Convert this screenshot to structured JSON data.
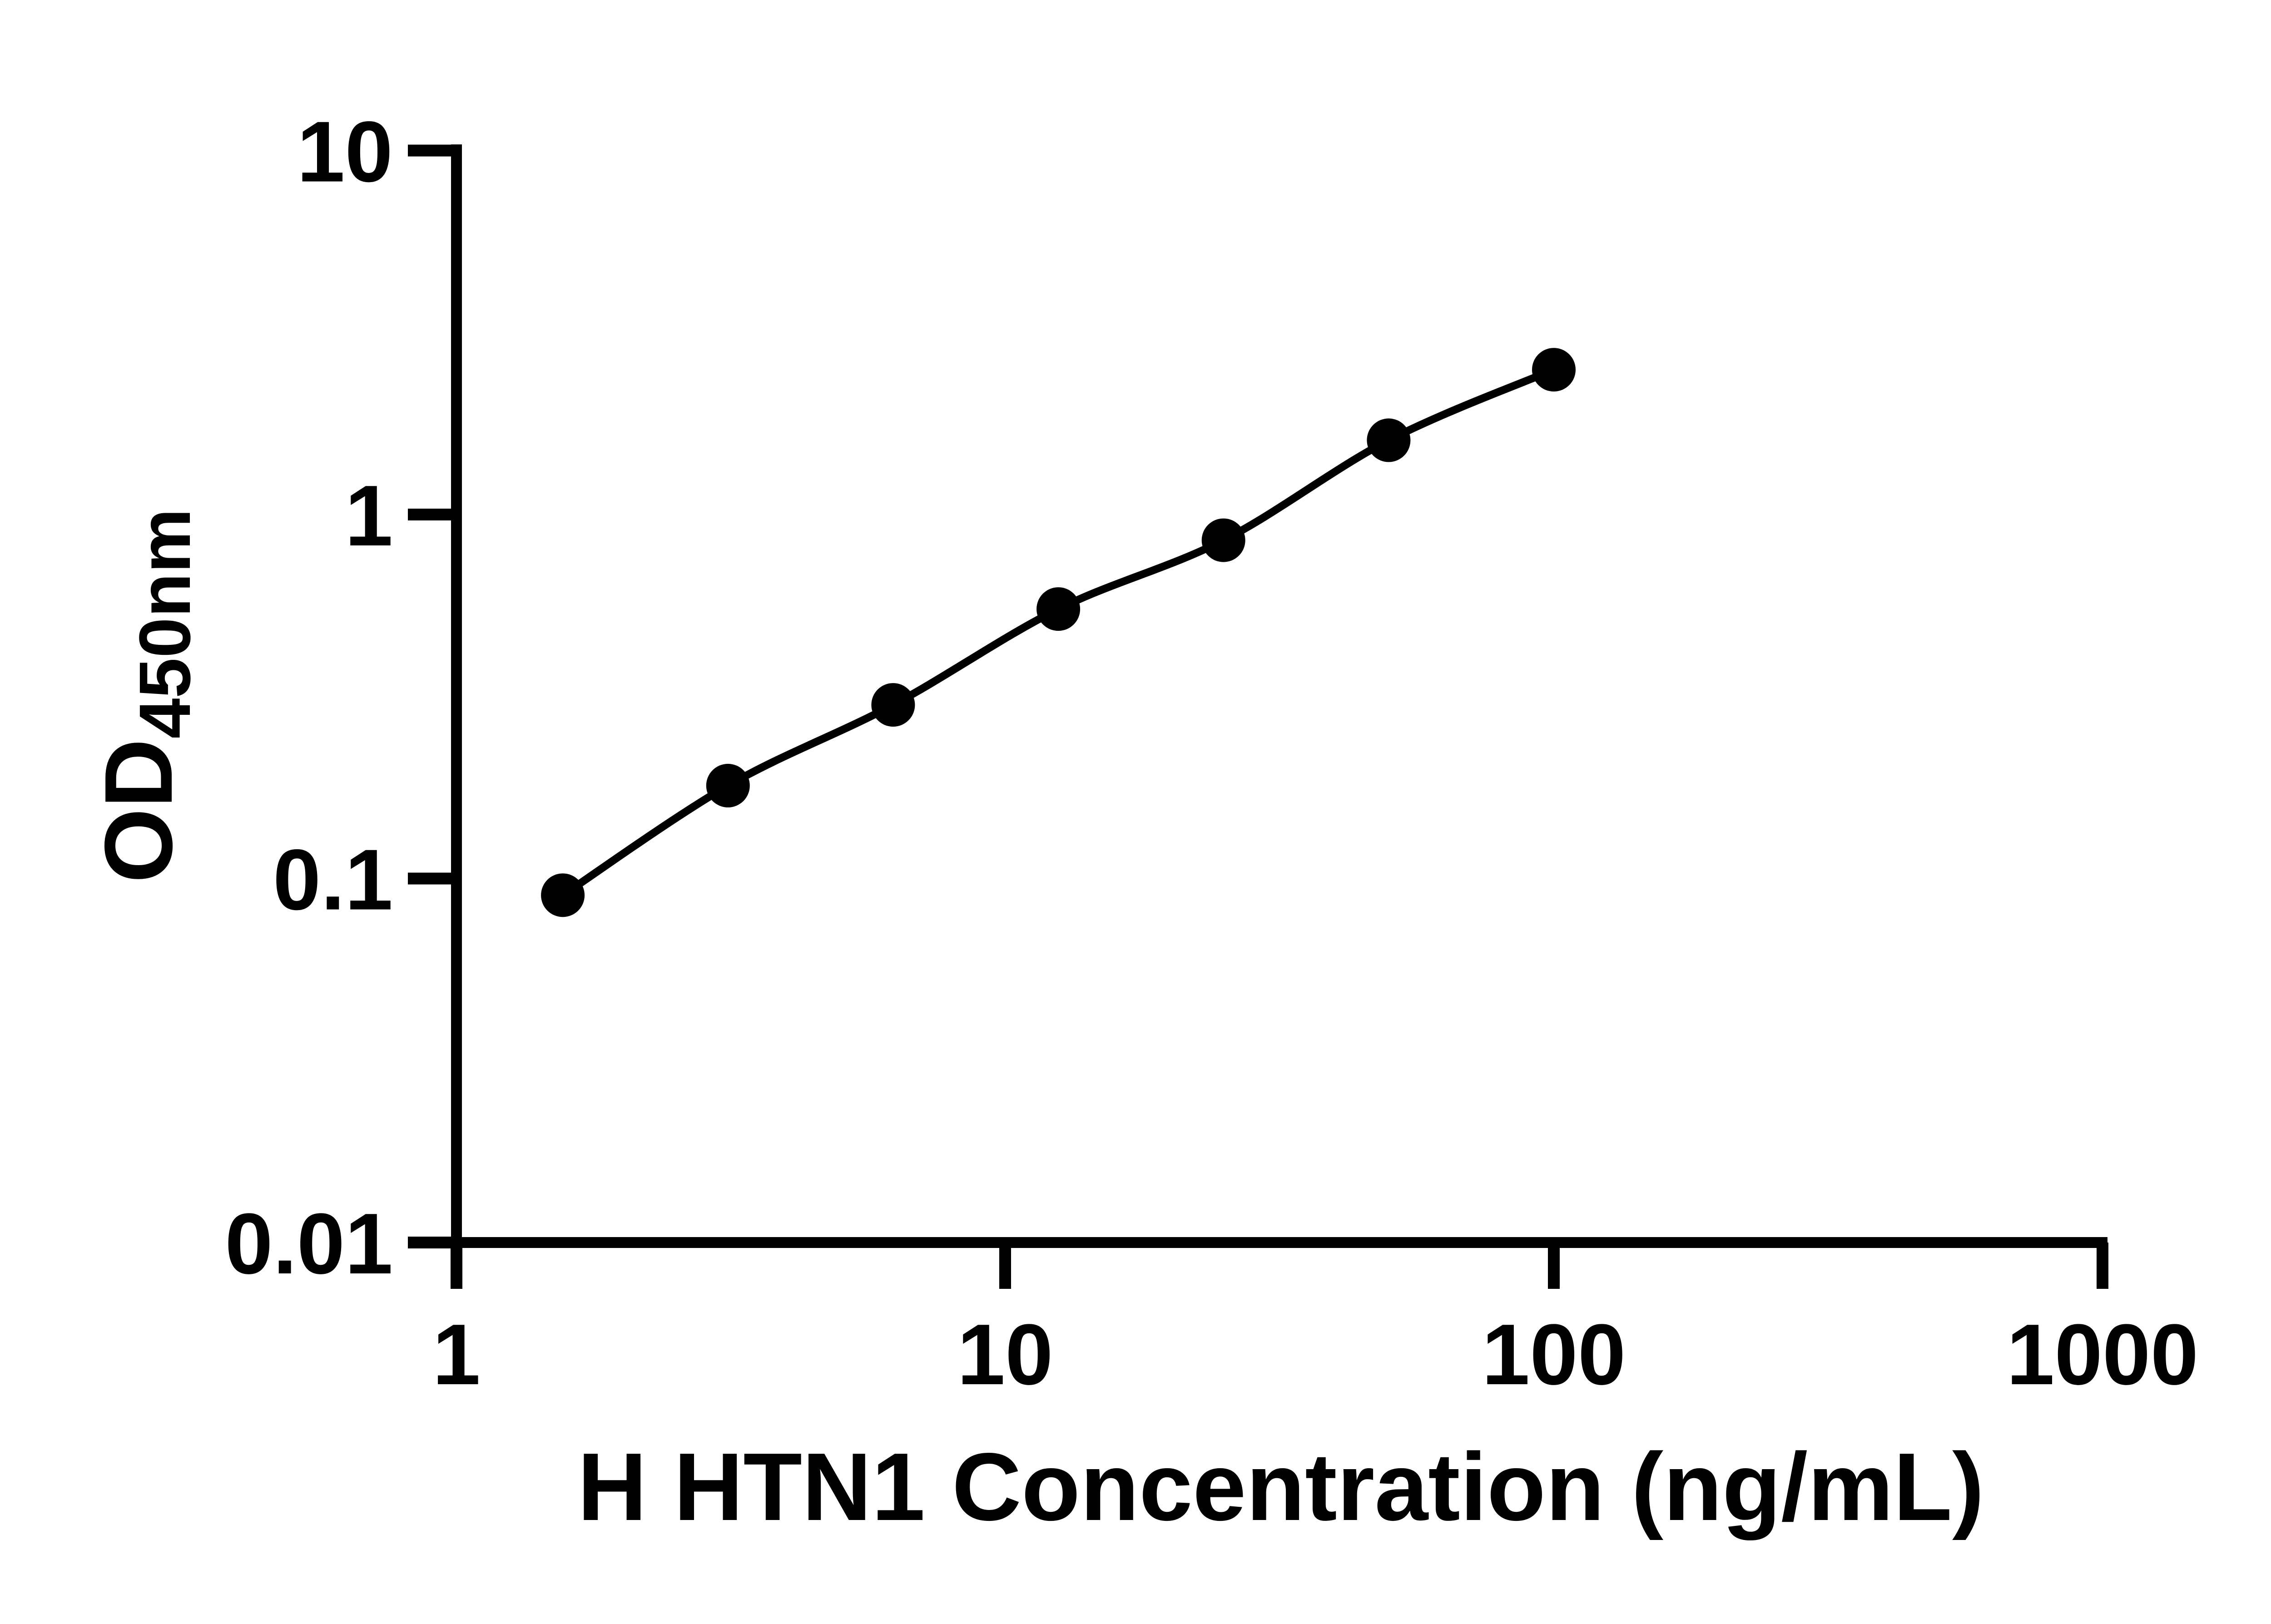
{
  "colors": {
    "background": "#ffffff",
    "ink": "#000000"
  },
  "chart_data": {
    "type": "line",
    "title": "",
    "xlabel": "H HTN1 Concentration (ng/mL)",
    "ylabel": "OD450nm",
    "ylabel_main": "OD",
    "ylabel_sub": "450nm",
    "xscale": "log10",
    "yscale": "log10",
    "xlim": [
      1,
      1000
    ],
    "ylim": [
      0.01,
      10
    ],
    "x_ticks": [
      1,
      10,
      100,
      1000
    ],
    "x_tick_labels": [
      "1",
      "10",
      "100",
      "1000"
    ],
    "y_ticks": [
      10,
      1,
      0.1,
      0.01
    ],
    "y_tick_labels": [
      "10",
      "1",
      "0.1",
      "0.01"
    ],
    "grid": false,
    "legend": false,
    "series": [
      {
        "marker": "filled-circle",
        "line": "solid-smooth",
        "color": "#000000",
        "x": [
          1.5625,
          3.125,
          6.25,
          12.5,
          25,
          50,
          100
        ],
        "y": [
          0.09,
          0.18,
          0.3,
          0.55,
          0.85,
          1.6,
          2.5
        ]
      }
    ]
  }
}
